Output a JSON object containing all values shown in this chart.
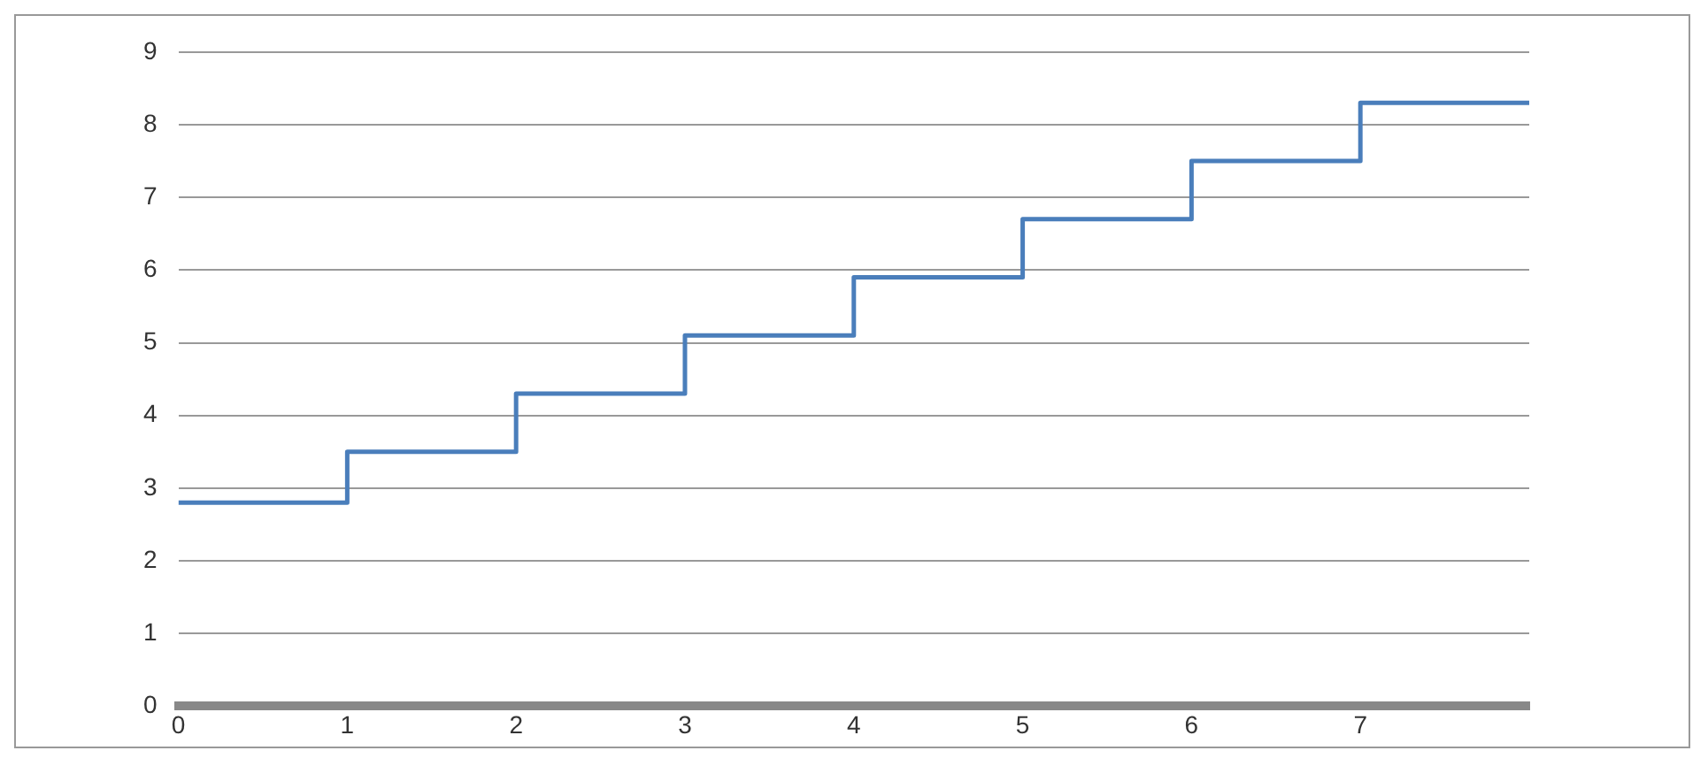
{
  "chart_data": {
    "type": "step",
    "x": [
      0,
      1,
      2,
      3,
      4,
      5,
      6,
      7,
      8
    ],
    "series": [
      {
        "color": "#4a7ebb",
        "values": [
          2.8,
          3.5,
          4.3,
          5.1,
          5.9,
          6.7,
          7.5,
          8.3,
          8.3
        ]
      }
    ],
    "xlim": [
      0,
      8
    ],
    "xticks": [
      0,
      1,
      2,
      3,
      4,
      5,
      6,
      7
    ],
    "ylim": [
      0,
      9
    ],
    "yticks": [
      0,
      1,
      2,
      3,
      4,
      5,
      6,
      7,
      8,
      9
    ],
    "grid": "y",
    "legend": false
  }
}
